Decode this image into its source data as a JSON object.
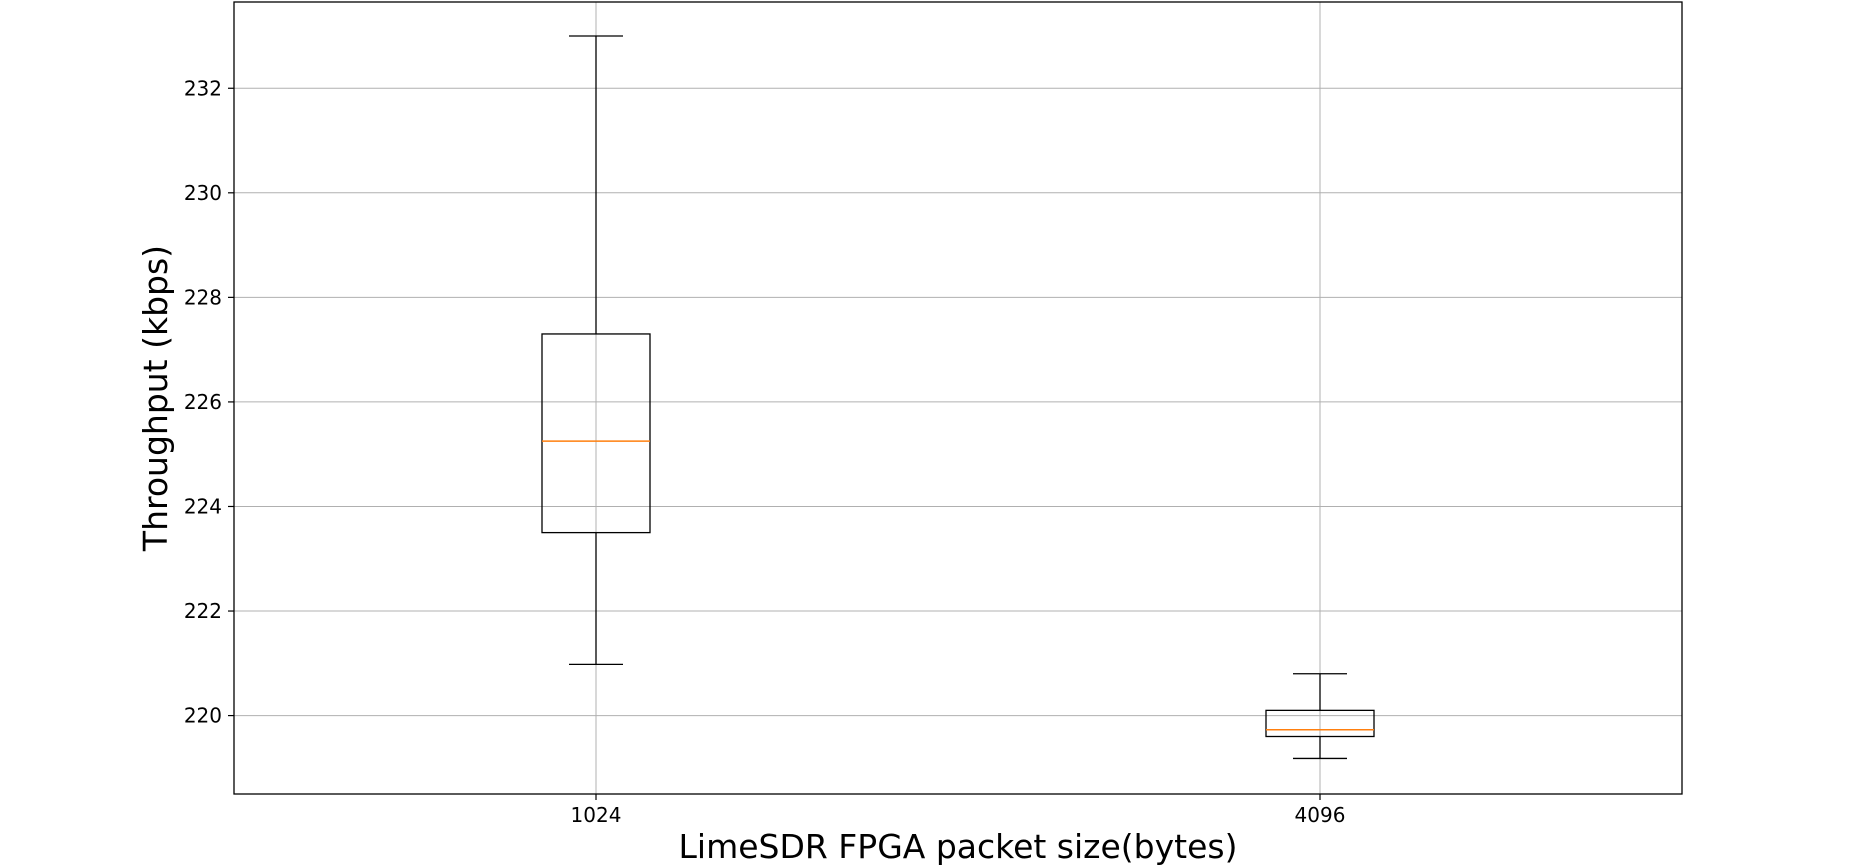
{
  "chart_data": {
    "type": "boxplot",
    "title": "",
    "xlabel": "LimeSDR FPGA packet size(bytes)",
    "ylabel": "Throughput (kbps)",
    "categories": [
      "1024",
      "4096"
    ],
    "boxes": [
      {
        "category": "1024",
        "whisker_low": 220.98,
        "q1": 223.5,
        "median": 225.25,
        "q3": 227.3,
        "whisker_high": 233.0
      },
      {
        "category": "4096",
        "whisker_low": 219.18,
        "q1": 219.6,
        "median": 219.73,
        "q3": 220.1,
        "whisker_high": 220.8
      }
    ],
    "yticks": [
      220,
      222,
      224,
      226,
      228,
      230,
      232
    ],
    "ylim": [
      218.5,
      233.65
    ],
    "grid": true,
    "legend": "none",
    "colors": {
      "box": "#000000",
      "median": "#ff7f0e",
      "grid": "#b0b0b0"
    }
  }
}
